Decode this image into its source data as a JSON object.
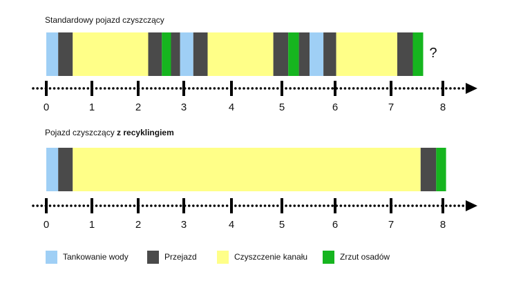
{
  "colors": {
    "tankowanie": "#9fcff5",
    "przejazd": "#4a4a4a",
    "czyszczenie": "#ffff88",
    "zrzut": "#16b51f",
    "axis": "#000000"
  },
  "standard": {
    "title": "Standardowy pojazd czyszczący",
    "end_marker": "?",
    "segments": [
      {
        "type": "tankowanie",
        "start": 0.0,
        "end": 0.26
      },
      {
        "type": "przejazd",
        "start": 0.26,
        "end": 0.58
      },
      {
        "type": "czyszczenie",
        "start": 0.58,
        "end": 2.22
      },
      {
        "type": "przejazd",
        "start": 2.22,
        "end": 2.52
      },
      {
        "type": "zrzut",
        "start": 2.52,
        "end": 2.72
      },
      {
        "type": "przejazd",
        "start": 2.72,
        "end": 2.92
      },
      {
        "type": "tankowanie",
        "start": 2.92,
        "end": 3.2
      },
      {
        "type": "przejazd",
        "start": 3.2,
        "end": 3.5
      },
      {
        "type": "czyszczenie",
        "start": 3.5,
        "end": 4.83
      },
      {
        "type": "przejazd",
        "start": 4.83,
        "end": 5.12
      },
      {
        "type": "zrzut",
        "start": 5.12,
        "end": 5.32
      },
      {
        "type": "przejazd",
        "start": 5.32,
        "end": 5.52
      },
      {
        "type": "tankowanie",
        "start": 5.52,
        "end": 5.78
      },
      {
        "type": "przejazd",
        "start": 5.78,
        "end": 6.02
      },
      {
        "type": "czyszczenie",
        "start": 6.02,
        "end": 7.12
      },
      {
        "type": "przejazd",
        "start": 7.12,
        "end": 7.42
      },
      {
        "type": "zrzut",
        "start": 7.42,
        "end": 7.62
      }
    ]
  },
  "recycling": {
    "title_prefix": "Pojazd czyszczący ",
    "title_bold": "z recyklingiem",
    "segments": [
      {
        "type": "tankowanie",
        "start": 0.0,
        "end": 0.26
      },
      {
        "type": "przejazd",
        "start": 0.26,
        "end": 0.58
      },
      {
        "type": "czyszczenie",
        "start": 0.58,
        "end": 7.57
      },
      {
        "type": "przejazd",
        "start": 7.57,
        "end": 7.87
      },
      {
        "type": "zrzut",
        "start": 7.87,
        "end": 8.06
      }
    ]
  },
  "axis": {
    "tick_labels": [
      "0",
      "1",
      "2",
      "3",
      "4",
      "5",
      "6",
      "7",
      "8"
    ]
  },
  "legend": [
    {
      "key": "tankowanie",
      "label": "Tankowanie wody"
    },
    {
      "key": "przejazd",
      "label": "Przejazd"
    },
    {
      "key": "czyszczenie",
      "label": "Czyszczenie kanału"
    },
    {
      "key": "zrzut",
      "label": "Zrzut osadów"
    }
  ]
}
